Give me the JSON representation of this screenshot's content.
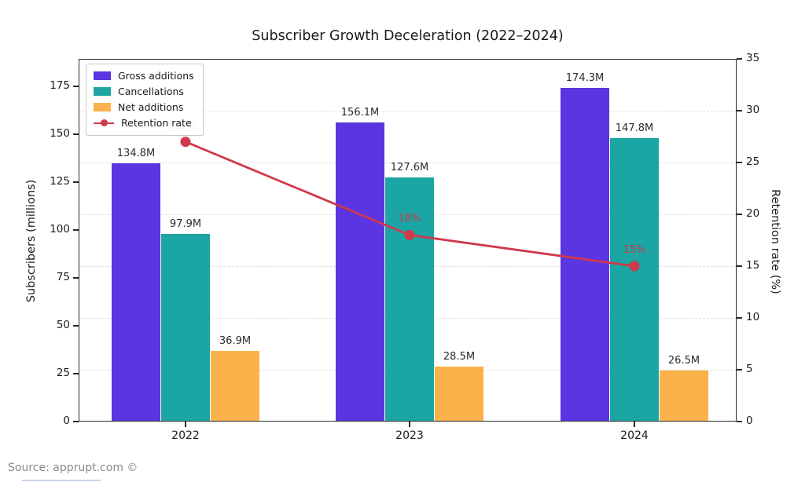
{
  "title": "Subscriber Growth Deceleration (2022–2024)",
  "source_caption": "Source: apprupt.com ©",
  "chart_data": {
    "type": "bar",
    "subtype": "grouped-bars-with-right-axis-line",
    "title": "Subscriber Growth Deceleration (2022–2024)",
    "categories": [
      "2022",
      "2023",
      "2024"
    ],
    "series": [
      {
        "name": "Gross additions",
        "kind": "bar",
        "color": "#5A35E1",
        "values": [
          134.8,
          156.1,
          174.3
        ],
        "value_labels": [
          "134.8M",
          "156.1M",
          "174.3M"
        ]
      },
      {
        "name": "Cancellations",
        "kind": "bar",
        "color": "#1BA5A3",
        "values": [
          97.9,
          127.6,
          147.8
        ],
        "value_labels": [
          "97.9M",
          "127.6M",
          "147.8M"
        ]
      },
      {
        "name": "Net additions",
        "kind": "bar",
        "color": "#FBB24A",
        "values": [
          36.9,
          28.5,
          26.5
        ],
        "value_labels": [
          "36.9M",
          "28.5M",
          "26.5M"
        ]
      },
      {
        "name": "Retention rate",
        "kind": "line",
        "axis": "right",
        "color": "#D0384B",
        "values": [
          27,
          18,
          15
        ],
        "value_labels": [
          "27%",
          "18%",
          "15%"
        ]
      }
    ],
    "left_axis": {
      "label": "Subscribers (millions)",
      "ticks": [
        0,
        25,
        50,
        75,
        100,
        125,
        150,
        175
      ],
      "range": [
        0,
        189
      ]
    },
    "right_axis": {
      "label": "Retention rate (%)",
      "ticks": [
        0,
        5,
        10,
        15,
        20,
        25,
        30,
        35
      ],
      "range": [
        0,
        35
      ]
    },
    "legend": {
      "position": "upper-left"
    },
    "grid": "horizontal-dashed"
  }
}
